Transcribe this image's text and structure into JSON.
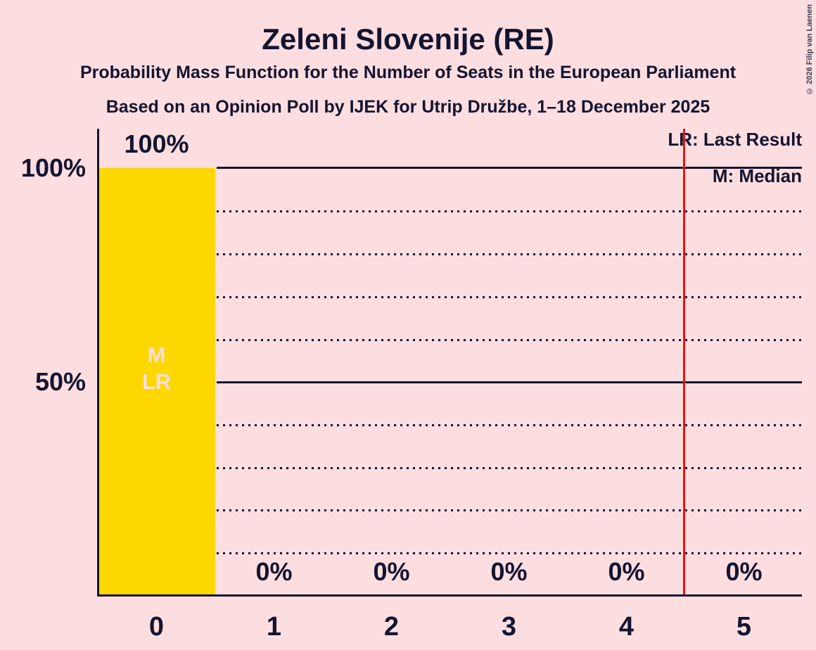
{
  "title": "Zeleni Slovenije (RE)",
  "subtitle_line1": "Probability Mass Function for the Number of Seats in the European Parliament",
  "subtitle_line2": "Based on an Opinion Poll by IJEK for Utrip Družbe, 1–18 December 2025",
  "legend": {
    "last_result": "LR: Last Result",
    "median": "M: Median"
  },
  "y_axis": {
    "tick_100": "100%",
    "tick_50": "50%"
  },
  "x_axis": {
    "labels": [
      "0",
      "1",
      "2",
      "3",
      "4",
      "5"
    ]
  },
  "bar_value_labels": [
    "100%",
    "0%",
    "0%",
    "0%",
    "0%",
    "0%"
  ],
  "bar_markers": {
    "median": "M",
    "last_result": "LR"
  },
  "copyright": "© 2026 Filip van Laenen",
  "colors": {
    "background": "#fcdee1",
    "text": "#14142f",
    "bar": "#ffd700",
    "bar_marker_text": "#fcdee1",
    "red_line": "#ec1212"
  },
  "chart_data": {
    "type": "bar",
    "title": "Zeleni Slovenije (RE)",
    "subtitle": "Probability Mass Function for the Number of Seats in the European Parliament",
    "source_note": "Based on an Opinion Poll by IJEK for Utrip Družbe, 1–18 December 2025",
    "categories": [
      "0",
      "1",
      "2",
      "3",
      "4",
      "5"
    ],
    "values": [
      100,
      0,
      0,
      0,
      0,
      0
    ],
    "value_labels": [
      "100%",
      "0%",
      "0%",
      "0%",
      "0%",
      "0%"
    ],
    "value_unit": "%",
    "ylim": [
      0,
      100
    ],
    "y_tick_labels": [
      "100%",
      "50%"
    ],
    "y_solid_gridlines": [
      100,
      50
    ],
    "y_dotted_gridlines": [
      90,
      80,
      70,
      60,
      40,
      30,
      20,
      10
    ],
    "median_seats": 0,
    "last_result_seats": 0,
    "median_marker_on_bar": "0",
    "last_result_marker_on_bar": "0",
    "red_vertical_line_x": 4.5,
    "legend_entries": [
      "LR: Last Result",
      "M: Median"
    ],
    "legend_position": "top-right",
    "grid": "horizontal, dotted every 10%, solid at 50% and 100%"
  }
}
